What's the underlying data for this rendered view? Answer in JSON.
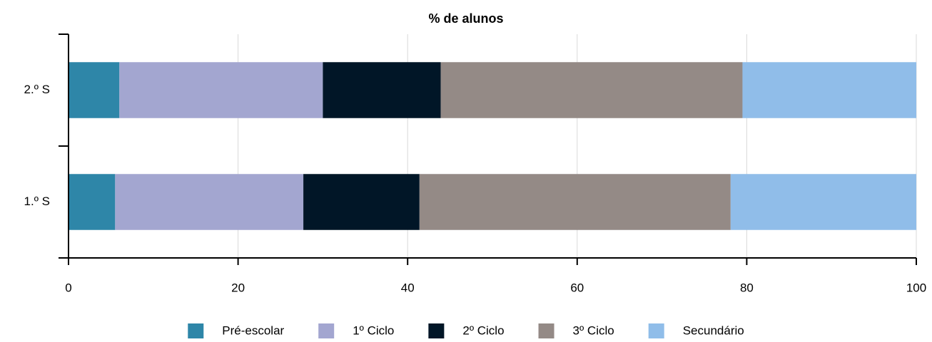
{
  "chart_data": {
    "type": "stacked_bar_horizontal",
    "title": "% de alunos",
    "categories": [
      "2.º S",
      "1.º S"
    ],
    "series": [
      {
        "name": "Pré-escolar",
        "color": "#2e86a8",
        "values": [
          6.0,
          5.5
        ]
      },
      {
        "name": "1º Ciclo",
        "color": "#a3a6d0",
        "values": [
          24.0,
          22.2
        ]
      },
      {
        "name": "2º Ciclo",
        "color": "#011627",
        "values": [
          13.9,
          13.7
        ]
      },
      {
        "name": "3º Ciclo",
        "color": "#948a86",
        "values": [
          35.6,
          36.7
        ]
      },
      {
        "name": "Secundário",
        "color": "#90bde9",
        "values": [
          20.5,
          21.9
        ]
      }
    ],
    "xlim": [
      0,
      100
    ],
    "xticks": [
      0,
      20,
      40,
      60,
      80,
      100
    ],
    "grid": true,
    "legend": "bottom"
  }
}
